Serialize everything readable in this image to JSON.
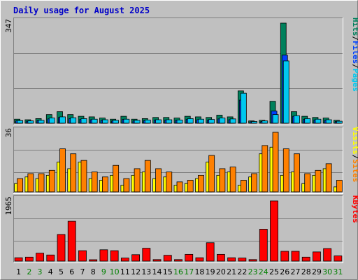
{
  "chart_data": {
    "type": "bar",
    "title": "Daily usage for August 2025",
    "categories": [
      "1",
      "2",
      "3",
      "4",
      "5",
      "6",
      "7",
      "8",
      "9",
      "10",
      "11",
      "12",
      "13",
      "14",
      "15",
      "16",
      "17",
      "18",
      "19",
      "20",
      "21",
      "22",
      "23",
      "24",
      "25",
      "26",
      "27",
      "28",
      "29",
      "30",
      "31"
    ],
    "weekend_days": [
      "2",
      "3",
      "9",
      "10",
      "16",
      "17",
      "23",
      "24",
      "30",
      "31"
    ],
    "colors": {
      "hits": "#00805c",
      "files": "#0040ff",
      "pages": "#00c8f0",
      "visits": "#ffff00",
      "sites": "#ff8000",
      "kbytes": "#ff0000",
      "weekday_label": "#000000",
      "weekend_label": "#008000",
      "panel_bg": "#c0c0c0"
    },
    "panels": [
      {
        "ymax_label": "347",
        "ylim": [
          0,
          347
        ],
        "legend": [
          {
            "text": "Pages",
            "color": "#00c8f0"
          },
          {
            "text": "Files",
            "color": "#0040ff"
          },
          {
            "text": "Hits",
            "color": "#00805c"
          }
        ],
        "series": [
          {
            "name": "Hits",
            "values": [
              14,
              12,
              16,
              30,
              40,
              30,
              24,
              22,
              18,
              14,
              24,
              14,
              16,
              20,
              20,
              18,
              24,
              22,
              20,
              28,
              22,
              112,
              8,
              10,
              76,
              347,
              40,
              24,
              20,
              18,
              10
            ]
          },
          {
            "name": "Files",
            "values": [
              8,
              7,
              9,
              15,
              20,
              16,
              13,
              12,
              10,
              8,
              13,
              8,
              9,
              11,
              11,
              10,
              13,
              12,
              11,
              15,
              12,
              80,
              4,
              6,
              42,
              236,
              24,
              13,
              11,
              10,
              6
            ]
          },
          {
            "name": "Pages",
            "values": [
              9,
              8,
              10,
              18,
              22,
              19,
              16,
              14,
              12,
              10,
              14,
              10,
              11,
              12,
              12,
              11,
              16,
              14,
              13,
              18,
              15,
              104,
              6,
              8,
              30,
              216,
              26,
              16,
              14,
              12,
              7
            ]
          }
        ]
      },
      {
        "ymax_label": "36",
        "ylim": [
          0,
          36
        ],
        "legend": [
          {
            "text": "Sites",
            "color": "#ff8000"
          },
          {
            "text": "Visits",
            "color": "#ffff00"
          }
        ],
        "series": [
          {
            "name": "Visits",
            "values": [
              5,
              9,
              8,
              10,
              18,
              14,
              18,
              8,
              7,
              10,
              4,
              10,
              12,
              8,
              9,
              4,
              5,
              8,
              18,
              10,
              12,
              4,
              9,
              23,
              27,
              10,
              12,
              5,
              10,
              14,
              3
            ]
          },
          {
            "name": "Sites",
            "values": [
              8,
              11,
              11,
              13,
              26,
              23,
              19,
              12,
              9,
              16,
              8,
              14,
              19,
              14,
              12,
              6,
              7,
              10,
              22,
              14,
              15,
              7,
              11,
              28,
              36,
              26,
              23,
              11,
              13,
              17,
              7
            ]
          }
        ]
      },
      {
        "ymax_label": "1965",
        "ylim": [
          0,
          1965
        ],
        "legend": [
          {
            "text": "KBytes",
            "color": "#ff0000"
          }
        ],
        "series": [
          {
            "name": "KBytes",
            "values": [
              110,
              130,
              260,
              200,
              870,
              1300,
              340,
              30,
              370,
              340,
              100,
              210,
              420,
              50,
              190,
              50,
              220,
              110,
              600,
              220,
              110,
              100,
              50,
              1040,
              1965,
              320,
              320,
              130,
              300,
              410,
              170
            ]
          }
        ]
      }
    ]
  }
}
